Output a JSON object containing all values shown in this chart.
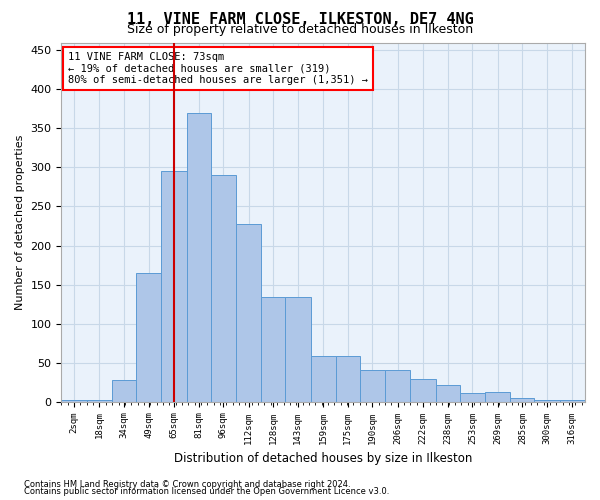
{
  "title1": "11, VINE FARM CLOSE, ILKESTON, DE7 4NG",
  "title2": "Size of property relative to detached houses in Ilkeston",
  "xlabel": "Distribution of detached houses by size in Ilkeston",
  "ylabel": "Number of detached properties",
  "footnote1": "Contains HM Land Registry data © Crown copyright and database right 2024.",
  "footnote2": "Contains public sector information licensed under the Open Government Licence v3.0.",
  "annotation_line1": "11 VINE FARM CLOSE: 73sqm",
  "annotation_line2": "← 19% of detached houses are smaller (319)",
  "annotation_line3": "80% of semi-detached houses are larger (1,351) →",
  "property_size": 73,
  "bar_labels": [
    "2sqm",
    "18sqm",
    "34sqm",
    "49sqm",
    "65sqm",
    "81sqm",
    "96sqm",
    "112sqm",
    "128sqm",
    "143sqm",
    "159sqm",
    "175sqm",
    "190sqm",
    "206sqm",
    "222sqm",
    "238sqm",
    "253sqm",
    "269sqm",
    "285sqm",
    "300sqm",
    "316sqm"
  ],
  "bar_values": [
    2,
    2,
    28,
    165,
    295,
    370,
    290,
    227,
    134,
    134,
    59,
    59,
    41,
    41,
    29,
    22,
    11,
    13,
    5,
    2,
    2
  ],
  "bar_left_edges": [
    2,
    18,
    34,
    49,
    65,
    81,
    96,
    112,
    128,
    143,
    159,
    175,
    190,
    206,
    222,
    238,
    253,
    269,
    285,
    300,
    316
  ],
  "bar_widths": [
    16,
    16,
    15,
    16,
    16,
    15,
    16,
    16,
    15,
    16,
    16,
    15,
    16,
    16,
    16,
    15,
    16,
    16,
    15,
    16,
    16
  ],
  "bar_color": "#aec6e8",
  "bar_edgecolor": "#5b9bd5",
  "vline_x": 73,
  "vline_color": "#cc0000",
  "grid_color": "#c8d8e8",
  "bg_color": "#eaf2fb",
  "ylim": [
    0,
    460
  ],
  "yticks": [
    0,
    50,
    100,
    150,
    200,
    250,
    300,
    350,
    400,
    450
  ]
}
